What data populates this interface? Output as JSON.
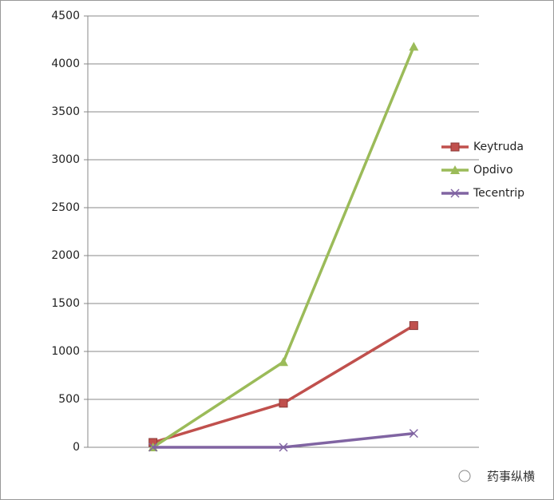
{
  "chart_data": {
    "type": "line",
    "categories": [
      null,
      null,
      null
    ],
    "series": [
      {
        "name": "Keytruda",
        "color": "#c0504d",
        "marker": "square",
        "values": [
          50,
          460,
          1270
        ]
      },
      {
        "name": "Opdivo",
        "color": "#9bbb59",
        "marker": "triangle",
        "values": [
          0,
          890,
          4180
        ]
      },
      {
        "name": "Tecentrip",
        "color": "#8064a2",
        "marker": "x",
        "values": [
          0,
          0,
          145
        ]
      }
    ],
    "ylim": [
      0,
      4500
    ],
    "yticks": [
      0,
      500,
      1000,
      1500,
      2000,
      2500,
      3000,
      3500,
      4000,
      4500
    ],
    "grid": true,
    "legend": "right"
  },
  "watermark": "药事纵横"
}
